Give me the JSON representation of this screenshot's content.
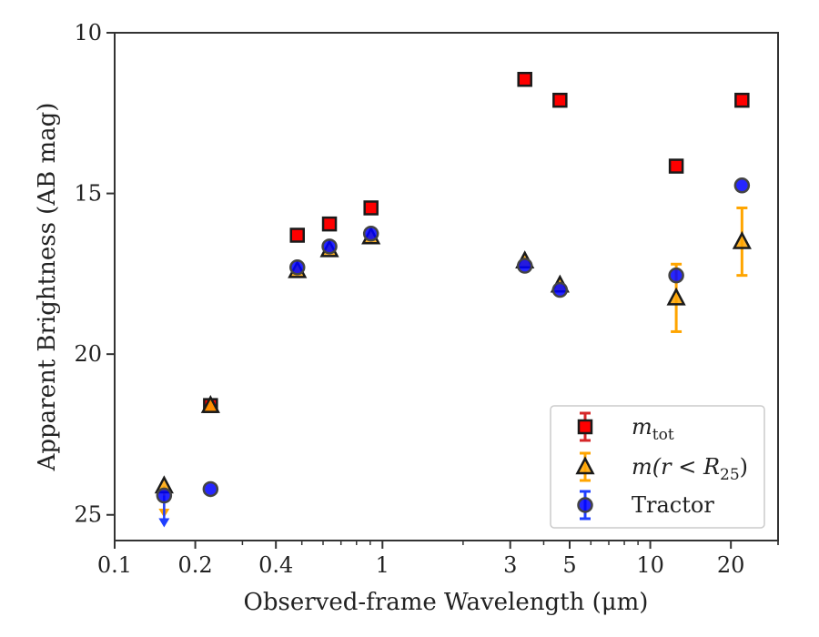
{
  "chart_data": {
    "type": "scatter",
    "title": "",
    "xlabel": "Observed-frame Wavelength (μm)",
    "ylabel": "Apparent Brightness (AB mag)",
    "x_scale": "log",
    "xlim": [
      0.1,
      30
    ],
    "ylim": [
      25.8,
      10
    ],
    "y_inverted": true,
    "x_ticks": [
      {
        "value": 0.1,
        "label": "0.1"
      },
      {
        "value": 0.2,
        "label": "0.2"
      },
      {
        "value": 0.4,
        "label": "0.4"
      },
      {
        "value": 1,
        "label": "1"
      },
      {
        "value": 3,
        "label": "3"
      },
      {
        "value": 5,
        "label": "5"
      },
      {
        "value": 10,
        "label": "10"
      },
      {
        "value": 20,
        "label": "20"
      }
    ],
    "y_ticks": [
      {
        "value": 10,
        "label": "10"
      },
      {
        "value": 15,
        "label": "15"
      },
      {
        "value": 20,
        "label": "20"
      },
      {
        "value": 25,
        "label": "25"
      }
    ],
    "grid": false,
    "legend_position": "bottom-right",
    "series": [
      {
        "name": "m_tot",
        "legend_label": "m",
        "legend_subscript": "tot",
        "marker": "square",
        "face_color": "#ff0000",
        "edge_color": "#1a1a1a",
        "error_color": "#d62728",
        "points": [
          {
            "x": 0.228,
            "y": 21.6
          },
          {
            "x": 0.481,
            "y": 16.3
          },
          {
            "x": 0.634,
            "y": 15.95
          },
          {
            "x": 0.906,
            "y": 15.45
          },
          {
            "x": 3.4,
            "y": 11.45
          },
          {
            "x": 4.6,
            "y": 12.1
          },
          {
            "x": 12.5,
            "y": 14.15
          },
          {
            "x": 22.0,
            "y": 12.1
          }
        ]
      },
      {
        "name": "m(r < R25)",
        "legend_label": "m(r < R",
        "legend_subscript": "25",
        "legend_suffix": ")",
        "marker": "triangle",
        "face_color": "#ffa500",
        "edge_color": "#1a1a1a",
        "error_color": "#ffa500",
        "points": [
          {
            "x": 0.153,
            "y": 24.1,
            "upper_limit": true
          },
          {
            "x": 0.228,
            "y": 21.6
          },
          {
            "x": 0.481,
            "y": 17.4
          },
          {
            "x": 0.634,
            "y": 16.75
          },
          {
            "x": 0.906,
            "y": 16.35
          },
          {
            "x": 3.4,
            "y": 17.1
          },
          {
            "x": 4.6,
            "y": 17.85
          },
          {
            "x": 12.5,
            "y": 18.25,
            "err": 1.05
          },
          {
            "x": 22.0,
            "y": 16.5,
            "err": 1.05
          }
        ]
      },
      {
        "name": "Tractor",
        "legend_label": "Tractor",
        "marker": "circle",
        "face_color": "#0000ff",
        "edge_color": "#444444",
        "error_color": "#1f3fff",
        "points": [
          {
            "x": 0.153,
            "y": 24.4,
            "upper_limit": true
          },
          {
            "x": 0.228,
            "y": 24.2
          },
          {
            "x": 0.481,
            "y": 17.3
          },
          {
            "x": 0.634,
            "y": 16.65
          },
          {
            "x": 0.906,
            "y": 16.25
          },
          {
            "x": 3.4,
            "y": 17.25
          },
          {
            "x": 4.6,
            "y": 18.0
          },
          {
            "x": 12.5,
            "y": 17.55
          },
          {
            "x": 22.0,
            "y": 14.75
          }
        ]
      }
    ]
  }
}
